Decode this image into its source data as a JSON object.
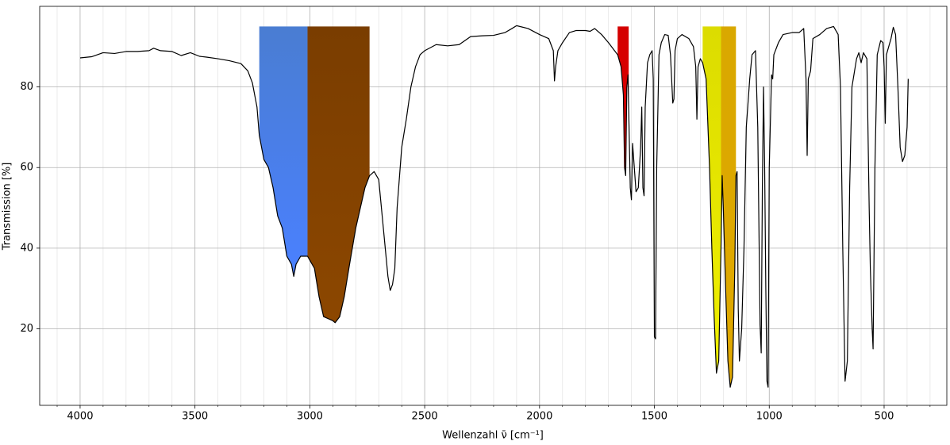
{
  "chart_data": {
    "type": "line",
    "x_label": "Wellenzahl ν̄ [cm⁻¹]",
    "y_label": "Transmission [%]",
    "xlim": [
      4176,
      227
    ],
    "ylim": [
      1,
      100
    ],
    "xticks": [
      4000,
      3500,
      3000,
      2500,
      2000,
      1500,
      1000,
      500
    ],
    "xminor": [
      4100,
      3900,
      3800,
      3700,
      3600,
      3400,
      3300,
      3200,
      3100,
      2900,
      2800,
      2700,
      2600,
      2400,
      2300,
      2200,
      2100,
      1900,
      1800,
      1700,
      1600,
      1400,
      1300,
      1200,
      1100,
      900,
      800,
      700,
      600,
      400,
      300
    ],
    "yticks": [
      20,
      40,
      60,
      80
    ],
    "grid": true,
    "band_top": 95,
    "bands": [
      {
        "x": [
          3220,
          3010
        ],
        "colors": [
          "#4a7dd2",
          "#4a80ff"
        ]
      },
      {
        "x": [
          3010,
          2740
        ],
        "colors": [
          "#7a3d00",
          "#8c4700"
        ]
      },
      {
        "x": [
          1660,
          1612
        ],
        "colors": [
          "#d40000",
          "#e00000"
        ]
      },
      {
        "x": [
          1290,
          1210
        ],
        "colors": [
          "#dcdc00",
          "#f0f000"
        ]
      },
      {
        "x": [
          1210,
          1145
        ],
        "colors": [
          "#d9a800",
          "#e0a800"
        ]
      }
    ],
    "series": [
      {
        "color": "#000000",
        "x": [
          4000,
          3950,
          3900,
          3850,
          3800,
          3750,
          3700,
          3680,
          3650,
          3600,
          3560,
          3520,
          3480,
          3450,
          3400,
          3350,
          3300,
          3270,
          3250,
          3230,
          3220,
          3200,
          3180,
          3160,
          3140,
          3120,
          3100,
          3080,
          3070,
          3060,
          3040,
          3020,
          3010,
          3000,
          2980,
          2960,
          2940,
          2920,
          2900,
          2890,
          2870,
          2850,
          2830,
          2800,
          2780,
          2760,
          2740,
          2720,
          2700,
          2680,
          2660,
          2650,
          2640,
          2630,
          2620,
          2600,
          2580,
          2560,
          2540,
          2520,
          2500,
          2450,
          2400,
          2350,
          2300,
          2250,
          2200,
          2150,
          2120,
          2100,
          2050,
          2000,
          1960,
          1940,
          1935,
          1930,
          1920,
          1900,
          1870,
          1840,
          1800,
          1780,
          1760,
          1730,
          1700,
          1680,
          1660,
          1645,
          1635,
          1630,
          1625,
          1620,
          1615,
          1605,
          1600,
          1595,
          1590,
          1580,
          1570,
          1560,
          1555,
          1550,
          1545,
          1540,
          1530,
          1520,
          1510,
          1505,
          1500,
          1495,
          1490,
          1480,
          1470,
          1455,
          1440,
          1430,
          1420,
          1415,
          1410,
          1400,
          1380,
          1350,
          1330,
          1320,
          1315,
          1310,
          1300,
          1290,
          1275,
          1260,
          1250,
          1240,
          1230,
          1220,
          1210,
          1205,
          1200,
          1190,
          1180,
          1170,
          1160,
          1150,
          1145,
          1140,
          1135,
          1130,
          1120,
          1110,
          1100,
          1085,
          1075,
          1060,
          1050,
          1040,
          1035,
          1030,
          1025,
          1020,
          1015,
          1010,
          1005,
          1000,
          990,
          985,
          980,
          960,
          940,
          900,
          870,
          850,
          840,
          835,
          830,
          820,
          810,
          780,
          750,
          720,
          700,
          690,
          680,
          670,
          660,
          650,
          640,
          620,
          610,
          600,
          590,
          575,
          565,
          560,
          552,
          548,
          540,
          530,
          515,
          505,
          500,
          495,
          490,
          470,
          460,
          450,
          440,
          430,
          420,
          410,
          400,
          395
        ],
        "values": [
          87.2,
          87.5,
          88.5,
          88.3,
          88.8,
          88.8,
          89,
          89.6,
          89,
          88.8,
          87.8,
          88.5,
          87.6,
          87.4,
          87,
          86.5,
          85.8,
          84,
          81,
          75,
          68,
          62,
          60,
          55,
          48,
          45,
          38,
          36,
          33,
          36,
          38,
          38,
          38,
          37,
          35,
          28,
          23,
          22.5,
          22,
          21.5,
          23,
          28,
          35,
          45,
          50,
          55,
          58,
          59,
          57,
          45,
          33,
          29.5,
          31,
          35,
          50,
          65,
          72,
          80,
          85,
          88,
          89,
          90.5,
          90.2,
          90.5,
          92.5,
          92.7,
          92.8,
          93.5,
          94.5,
          95.2,
          94.5,
          93,
          92,
          89,
          81.5,
          85,
          89,
          91,
          93.5,
          94,
          94,
          93.8,
          94.5,
          93,
          91,
          89.5,
          88,
          85,
          78,
          60,
          58,
          80,
          83,
          55,
          52,
          66,
          62,
          54,
          55,
          65,
          75,
          55,
          53,
          75,
          86,
          88,
          89,
          82,
          18,
          17.5,
          60,
          88,
          91,
          93,
          92.8,
          88,
          76,
          77,
          89,
          92,
          93,
          92,
          90,
          85,
          72,
          85,
          87,
          86,
          82,
          60,
          40,
          23,
          9,
          12,
          40,
          58,
          50,
          30,
          12,
          5.5,
          8,
          35,
          58,
          59,
          25,
          12,
          20,
          40,
          70,
          82,
          88,
          89,
          70,
          21,
          14,
          55,
          80,
          60,
          30,
          7,
          5.5,
          60,
          83,
          82,
          88,
          91,
          93,
          93.5,
          93.5,
          94.5,
          82,
          63,
          82,
          84,
          92,
          93,
          94.5,
          95,
          93,
          80,
          40,
          7,
          12,
          55,
          80,
          87,
          88.5,
          86,
          88.5,
          87,
          50,
          35,
          20,
          15,
          60,
          88,
          91.5,
          91,
          85,
          71,
          88,
          92,
          94.8,
          93,
          80,
          65,
          61.5,
          63,
          70,
          82
        ]
      }
    ]
  }
}
